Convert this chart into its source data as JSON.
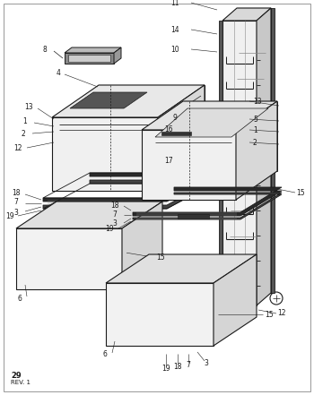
{
  "bg_color": "#ffffff",
  "line_color": "#1a1a1a",
  "dark_fill": "#2a2a2a",
  "mid_fill": "#555555",
  "light_fill": "#aaaaaa",
  "page_num": "29",
  "rev": "REV. 1",
  "fig_width": 3.5,
  "fig_height": 4.41,
  "dpi": 100
}
